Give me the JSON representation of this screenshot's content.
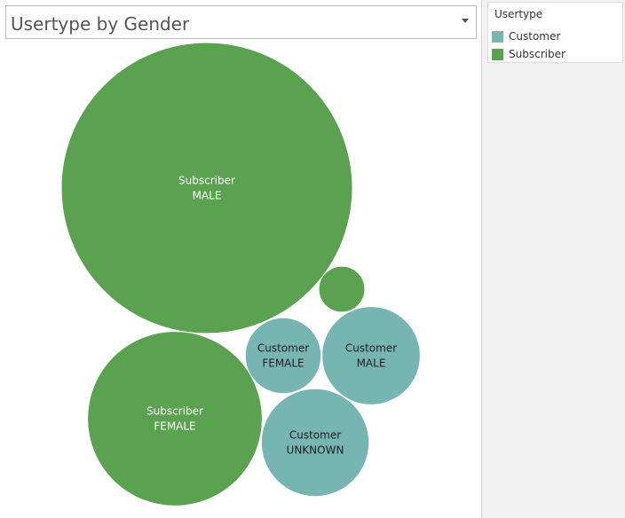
{
  "title": "Usertype by Gender",
  "legend": {
    "title": "Usertype",
    "items": [
      {
        "label": "Customer",
        "color": "#76b5b2"
      },
      {
        "label": "Subscriber",
        "color": "#5aa150"
      }
    ]
  },
  "chart_data": {
    "type": "packed-bubble",
    "title": "Usertype by Gender",
    "color_field": "Usertype",
    "size_measure_unlabeled": true,
    "bubbles": [
      {
        "usertype": "Subscriber",
        "gender": "MALE",
        "relative_size": 1.0,
        "label_lines": [
          "Subscriber",
          "MALE"
        ]
      },
      {
        "usertype": "Subscriber",
        "gender": "FEMALE",
        "relative_size": 0.36,
        "label_lines": [
          "Subscriber",
          "FEMALE"
        ]
      },
      {
        "usertype": "Subscriber",
        "gender": "UNKNOWN",
        "relative_size": 0.025,
        "label_lines": []
      },
      {
        "usertype": "Customer",
        "gender": "FEMALE",
        "relative_size": 0.068,
        "label_lines": [
          "Customer",
          "FEMALE"
        ]
      },
      {
        "usertype": "Customer",
        "gender": "MALE",
        "relative_size": 0.114,
        "label_lines": [
          "Customer",
          "MALE"
        ]
      },
      {
        "usertype": "Customer",
        "gender": "UNKNOWN",
        "relative_size": 0.137,
        "label_lines": [
          "Customer",
          "UNKNOWN"
        ]
      }
    ]
  }
}
